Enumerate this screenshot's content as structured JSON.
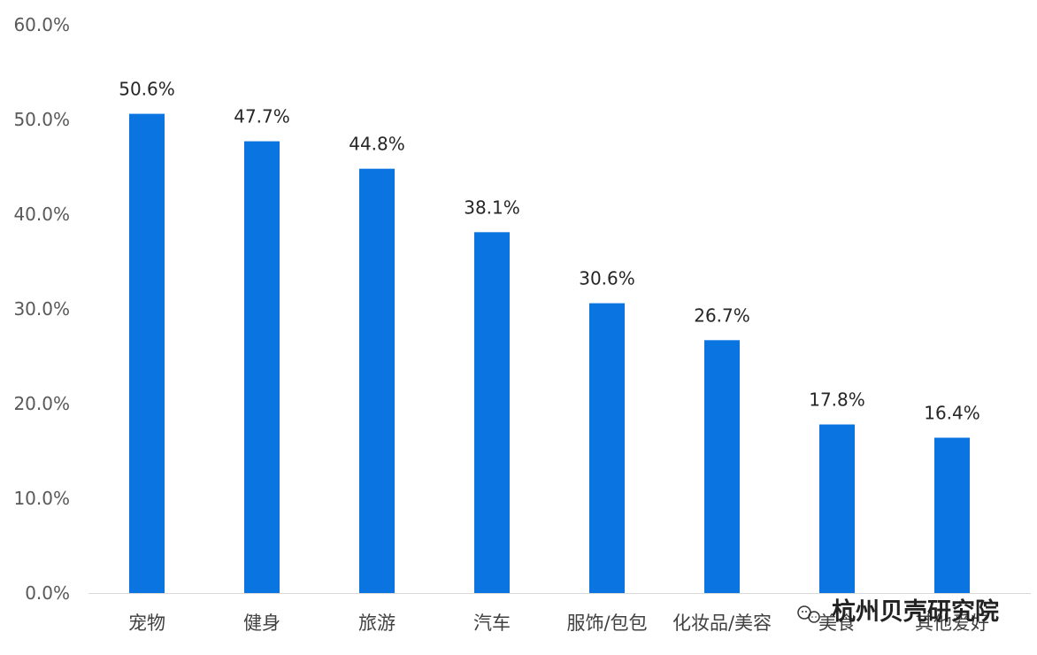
{
  "chart_data": {
    "type": "bar",
    "categories": [
      "宠物",
      "健身",
      "旅游",
      "汽车",
      "服饰/包包",
      "化妆品/美容",
      "美食",
      "其他爱好"
    ],
    "values": [
      50.6,
      47.7,
      44.8,
      38.1,
      30.6,
      26.7,
      17.8,
      16.4
    ],
    "data_labels": [
      "50.6%",
      "47.7%",
      "44.8%",
      "38.1%",
      "30.6%",
      "26.7%",
      "17.8%",
      "16.4%"
    ],
    "yticks": [
      0,
      10,
      20,
      30,
      40,
      50,
      60
    ],
    "ytick_labels": [
      "0.0%",
      "10.0%",
      "20.0%",
      "30.0%",
      "40.0%",
      "50.0%",
      "60.0%"
    ],
    "ylim": [
      0,
      60
    ],
    "grid": false,
    "legend": "none",
    "bar_color": "#0a74e0",
    "axis_color": "#d9d9d9",
    "title": "",
    "xlabel": "",
    "ylabel": ""
  },
  "watermark": {
    "text": "杭州贝壳研究院",
    "icon": "wechat-icon"
  }
}
